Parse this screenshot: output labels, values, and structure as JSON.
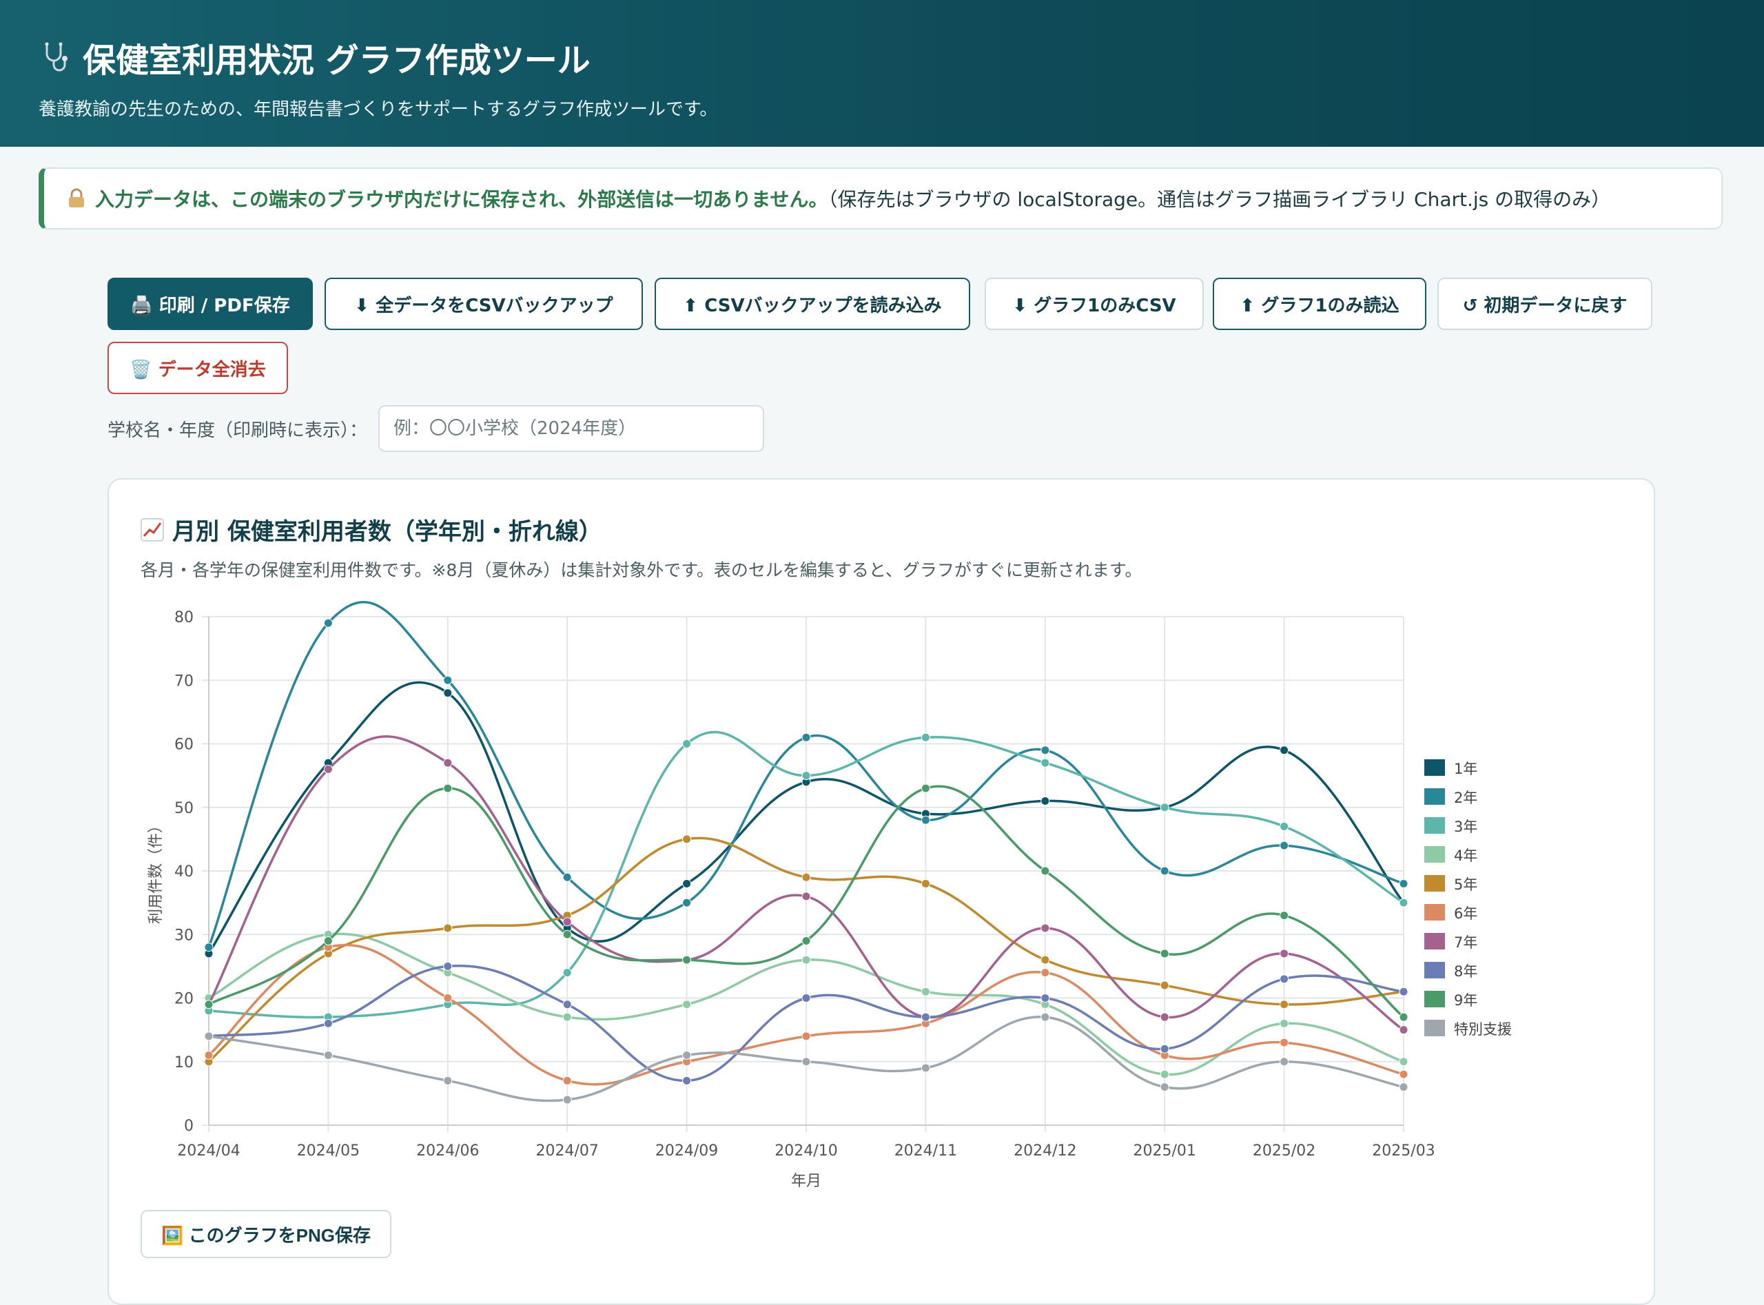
{
  "header": {
    "title": "保健室利用状況 グラフ作成ツール",
    "subtitle": "養護教諭の先生のための、年間報告書づくりをサポートするグラフ作成ツールです。"
  },
  "notice": {
    "icon": "lock-icon",
    "strong": "入力データは、この端末のブラウザ内だけに保存され、外部送信は一切ありません。",
    "rest": "（保存先はブラウザの localStorage。通信はグラフ描画ライブラリ Chart.js の取得のみ）"
  },
  "toolbar": {
    "print": "🖨️ 印刷 / PDF保存",
    "backup_all": "⬇ 全データをCSVバックアップ",
    "load_backup": "⬆ CSVバックアップを読み込み",
    "graph1_csv": "⬇ グラフ1のみCSV",
    "graph1_load": "⬆ グラフ1のみ読込",
    "reset": "↺ 初期データに戻す",
    "clear": "🗑️ データ全消去"
  },
  "school": {
    "label": "学校名・年度（印刷時に表示）：",
    "placeholder": "例：〇〇小学校（2024年度）"
  },
  "card": {
    "title": "月別 保健室利用者数（学年別・折れ線）",
    "description": "各月・各学年の保健室利用件数です。※8月（夏休み）は集計対象外です。表のセルを編集すると、グラフがすぐに更新されます。",
    "png_button": "🖼️ このグラフをPNG保存"
  },
  "chart_data": {
    "type": "line",
    "title": "",
    "xlabel": "年月",
    "ylabel": "利用件数（件）",
    "ylim": [
      0,
      80
    ],
    "yticks": [
      0,
      10,
      20,
      30,
      40,
      50,
      60,
      70,
      80
    ],
    "grid": true,
    "legend_position": "right",
    "categories": [
      "2024/04",
      "2024/05",
      "2024/06",
      "2024/07",
      "2024/09",
      "2024/10",
      "2024/11",
      "2024/12",
      "2025/01",
      "2025/02",
      "2025/03"
    ],
    "series": [
      {
        "name": "1年",
        "color": "#0d5569",
        "values": [
          27,
          57,
          68,
          31,
          38,
          54,
          49,
          51,
          50,
          59,
          35
        ]
      },
      {
        "name": "2年",
        "color": "#2a8799",
        "values": [
          28,
          79,
          70,
          39,
          35,
          61,
          48,
          59,
          40,
          44,
          38
        ]
      },
      {
        "name": "3年",
        "color": "#5cb6aa",
        "values": [
          18,
          17,
          19,
          24,
          60,
          55,
          61,
          57,
          50,
          47,
          35
        ]
      },
      {
        "name": "4年",
        "color": "#8ecba5",
        "values": [
          20,
          30,
          24,
          17,
          19,
          26,
          21,
          19,
          8,
          16,
          10
        ]
      },
      {
        "name": "5年",
        "color": "#c28a2e",
        "values": [
          10,
          27,
          31,
          33,
          45,
          39,
          38,
          26,
          22,
          19,
          21
        ]
      },
      {
        "name": "6年",
        "color": "#db8a62",
        "values": [
          11,
          28,
          20,
          7,
          10,
          14,
          16,
          24,
          11,
          13,
          8
        ]
      },
      {
        "name": "7年",
        "color": "#a4628f",
        "values": [
          19,
          56,
          57,
          32,
          26,
          36,
          17,
          31,
          17,
          27,
          15
        ]
      },
      {
        "name": "8年",
        "color": "#6c7db5",
        "values": [
          14,
          16,
          25,
          19,
          7,
          20,
          17,
          20,
          12,
          23,
          21
        ]
      },
      {
        "name": "9年",
        "color": "#4b9a6a",
        "values": [
          19,
          29,
          53,
          30,
          26,
          29,
          53,
          40,
          27,
          33,
          17
        ]
      },
      {
        "name": "特別支援",
        "color": "#9ea7ad",
        "values": [
          14,
          11,
          7,
          4,
          11,
          10,
          9,
          17,
          6,
          10,
          6
        ]
      }
    ]
  }
}
